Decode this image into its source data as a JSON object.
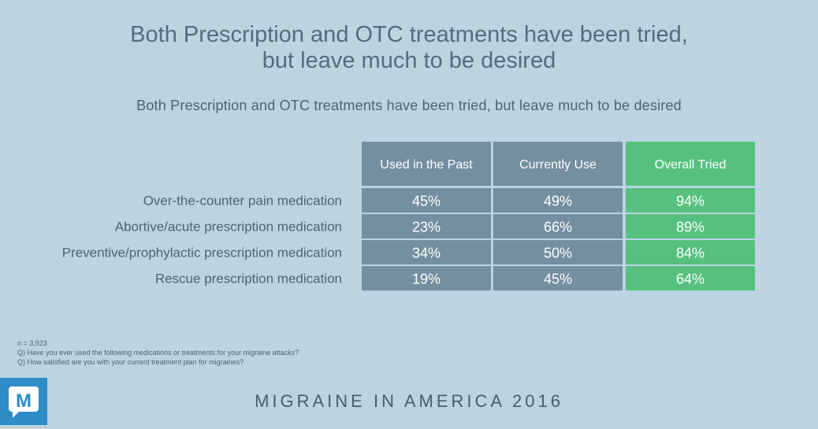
{
  "header": {
    "title_line1": "Both Prescription and OTC treatments have been tried,",
    "title_line2": "but leave much to be desired",
    "subtitle": "Both Prescription and OTC treatments have been tried, but leave much to be desired"
  },
  "chart_data": {
    "type": "table",
    "columns": [
      "Used in the Past",
      "Currently Use",
      "Overall Tried"
    ],
    "rows": [
      {
        "label": "Over-the-counter pain medication",
        "values": [
          "45%",
          "49%",
          "94%"
        ]
      },
      {
        "label": "Abortive/acute prescription medication",
        "values": [
          "23%",
          "66%",
          "89%"
        ]
      },
      {
        "label": "Preventive/prophylactic prescription medication",
        "values": [
          "34%",
          "50%",
          "84%"
        ]
      },
      {
        "label": "Rescue prescription medication",
        "values": [
          "19%",
          "45%",
          "64%"
        ]
      }
    ],
    "column_colors": [
      "#748fa0",
      "#748fa0",
      "#56c17e"
    ]
  },
  "notes": {
    "n": "n = 3,923",
    "q1": "Q) Have you ever used the following medications or treatments for your migraine attacks?",
    "q2": "Q) How satisfied are you with your current treatment plan for migraines?"
  },
  "footer": {
    "text": "MIGRAINE IN AMERICA 2016",
    "logo_icon": "m-logo-icon"
  }
}
